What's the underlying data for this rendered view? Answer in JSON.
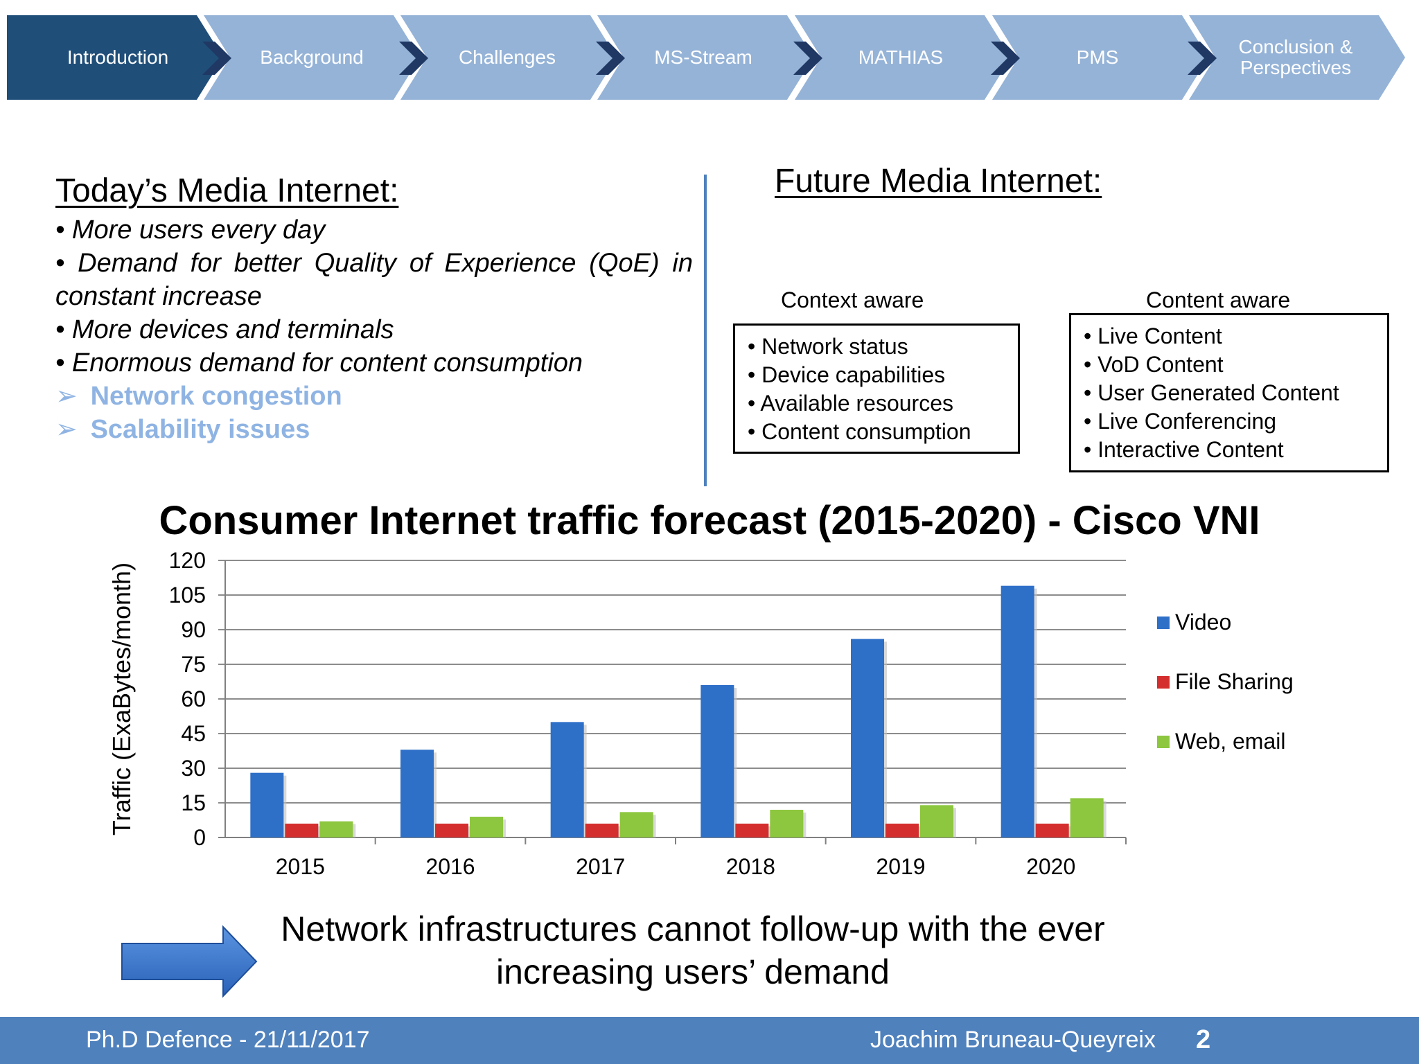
{
  "nav": {
    "items": [
      "Introduction",
      "Background",
      "Challenges",
      "MS-Stream",
      "MATHIAS",
      "PMS",
      "Conclusion & Perspectives"
    ],
    "colors": {
      "active": "#1F4E79",
      "inactive": "#95B3D7",
      "dark": "#1F3864"
    }
  },
  "left": {
    "title": "Today’s Media Internet:",
    "bullets": [
      "• More users every day",
      "• Demand for better Quality of Experience (QoE) in constant increase",
      "• More devices and terminals",
      "• Enormous demand for content consumption"
    ],
    "highlights": [
      "➢",
      "Network congestion",
      "Scalability issues"
    ]
  },
  "right": {
    "title": "Future Media Internet:",
    "context": {
      "label": "Context aware",
      "items": [
        "• Network status",
        "• Device capabilities",
        "• Available resources",
        "• Content consumption"
      ]
    },
    "content": {
      "label": "Content aware",
      "items": [
        "• Live Content",
        "• VoD Content",
        "• User Generated Content",
        "• Live Conferencing",
        "• Interactive Content"
      ]
    }
  },
  "chart_data": {
    "type": "bar",
    "title": "Consumer Internet traffic forecast (2015-2020) - Cisco VNI",
    "xlabel": "",
    "ylabel": "Traffic (ExaBytes/month)",
    "ylim": [
      0,
      120
    ],
    "yticks": [
      0,
      15,
      30,
      45,
      60,
      75,
      90,
      105,
      120
    ],
    "categories": [
      "2015",
      "2016",
      "2017",
      "2018",
      "2019",
      "2020"
    ],
    "series": [
      {
        "name": "Video",
        "color": "#2E6FC8",
        "values": [
          28,
          38,
          50,
          66,
          86,
          109
        ]
      },
      {
        "name": "File Sharing",
        "color": "#D42E2E",
        "values": [
          6,
          6,
          6,
          6,
          6,
          6
        ]
      },
      {
        "name": "Web, email",
        "color": "#8DC63F",
        "values": [
          7,
          9,
          11,
          12,
          14,
          17
        ]
      }
    ],
    "legend": "right",
    "grid": true
  },
  "conclusion": {
    "line1": "Network infrastructures cannot follow-up with the ever",
    "line2": "increasing users’ demand",
    "arrow_color": "#3A78D0"
  },
  "footer": {
    "left": "Ph.D Defence - 21/11/2017",
    "right": "Joachim Bruneau-Queyreix",
    "page": "2",
    "color": "#4F81BD"
  }
}
